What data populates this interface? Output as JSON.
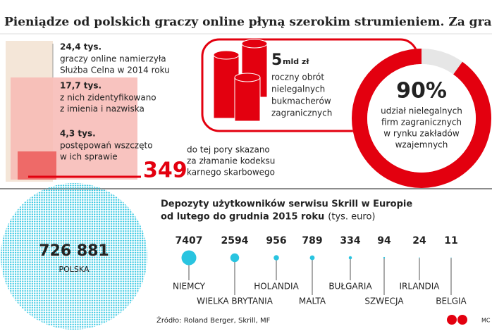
{
  "title": "Pieniądze od polskich graczy online płyną szerokim strumieniem. Za granicę",
  "counts": [
    {
      "figure": "24,4 tys.",
      "lines": [
        "graczy online namierzyła",
        "Służba Celna w 2014 roku"
      ]
    },
    {
      "figure": "17,7 tys.",
      "lines": [
        "z nich zidentyfikowano",
        "z imienia i nazwiska"
      ]
    },
    {
      "figure": "4,3 tys.",
      "lines": [
        "postępowań wszczęto",
        "w ich sprawie"
      ]
    }
  ],
  "convicted": {
    "figure": "349",
    "lines": [
      "do tej pory skazano",
      "za złamanie kodeksu",
      "karnego skarbowego"
    ]
  },
  "turnover": {
    "figure": "5",
    "unit": "mld zł",
    "lines": [
      "roczny obrót",
      "nielegalnych",
      "bukmacherów",
      "zagranicznych"
    ]
  },
  "share": {
    "value": 90,
    "label": "90%",
    "lines": [
      "udział nielegalnych",
      "firm zagranicznych",
      "w rynku zakładów",
      "wzajemnych"
    ]
  },
  "chart_data": {
    "type": "bubble",
    "title": [
      "Depozyty użytkowników serwisu Skrill w Europie",
      "od lutego do grudnia 2015 roku"
    ],
    "unit": "(tys. euro)",
    "categories": [
      "POLSKA",
      "NIEMCY",
      "WIELKA BRYTANIA",
      "HOLANDIA",
      "MALTA",
      "BUŁGARIA",
      "SZWECJA",
      "IRLANDIA",
      "BELGIA"
    ],
    "values": [
      726881,
      7407,
      2594,
      956,
      789,
      334,
      94,
      24,
      11
    ],
    "value_labels": [
      "726 881",
      "7407",
      "2594",
      "956",
      "789",
      "334",
      "94",
      "24",
      "11"
    ],
    "color": "#29c4e0"
  },
  "source": "Źródło: Roland Berger, Skrill, MF",
  "credit": "MC"
}
